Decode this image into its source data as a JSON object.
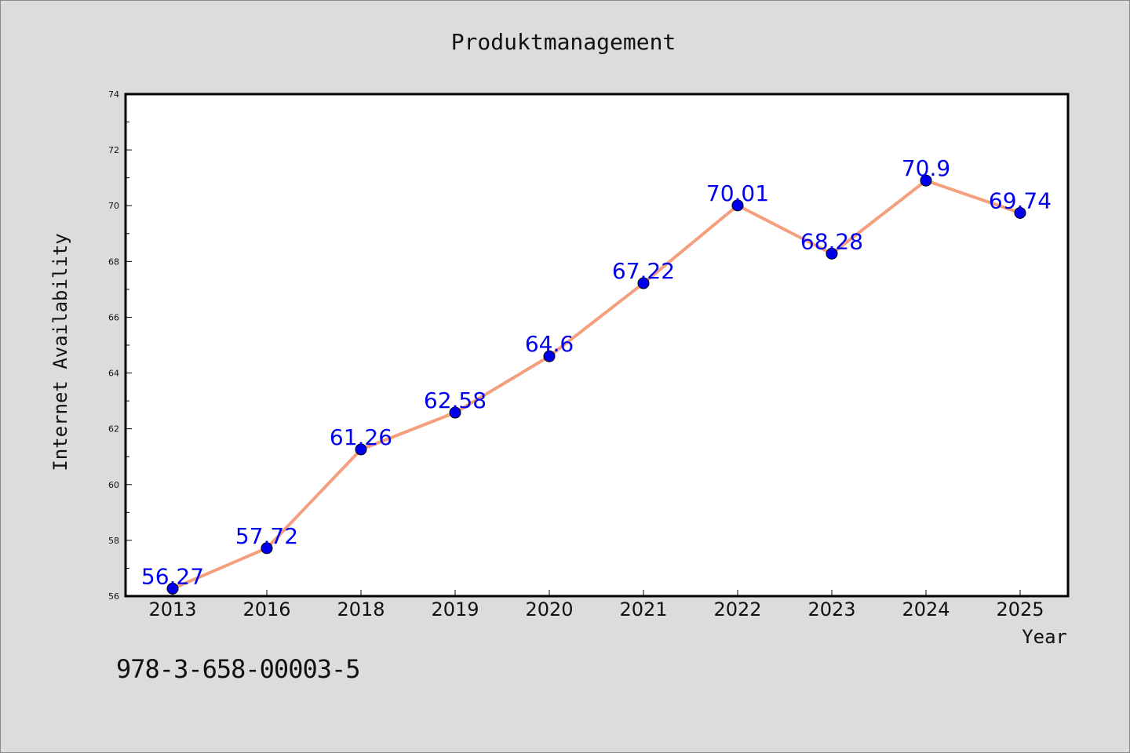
{
  "chart_data": {
    "type": "line",
    "title": "Produktmanagement",
    "xlabel": "Year",
    "ylabel": "Internet Availability",
    "categories": [
      "2013",
      "2016",
      "2018",
      "2019",
      "2020",
      "2021",
      "2022",
      "2023",
      "2024",
      "2025"
    ],
    "series": [
      {
        "values": [
          56.27,
          57.72,
          61.26,
          62.58,
          64.6,
          67.22,
          70.01,
          68.28,
          70.9,
          69.74
        ],
        "line_color": "#f4a07e",
        "marker_color": "#0000ee"
      }
    ],
    "data_labels": [
      "56.27",
      "57.72",
      "61.26",
      "62.58",
      "64.6",
      "67.22",
      "70.01",
      "68.28",
      "70.9",
      "69.74"
    ],
    "ylim": [
      56,
      74
    ],
    "yticks": [
      "56",
      "58",
      "60",
      "62",
      "64",
      "66",
      "68",
      "70",
      "72",
      "74"
    ],
    "grid": false,
    "label_color": "#0000ee"
  },
  "footer": {
    "isbn": "978-3-658-00003-5"
  }
}
